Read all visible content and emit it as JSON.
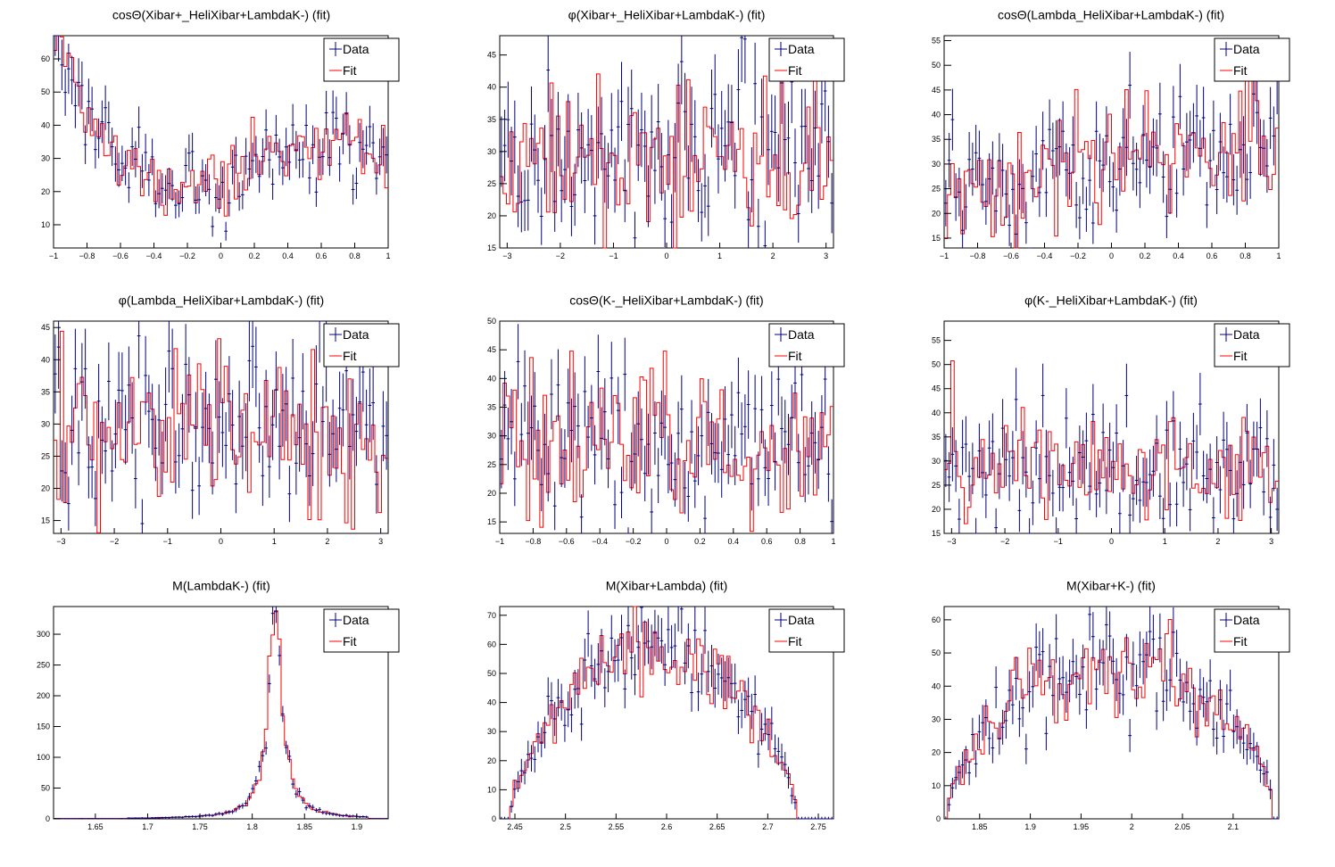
{
  "legend": {
    "data_label": "Data",
    "fit_label": "Fit"
  },
  "colors": {
    "data": "#000080",
    "fit": "#ff0000",
    "axis": "#000000",
    "frame_bg": "#ffffff"
  },
  "chart_data": [
    {
      "type": "histogram",
      "title": "cosΘ(Xibar+_HeliXibar+LambdaK-) (fit)",
      "xlim": [
        -1,
        1
      ],
      "ylim": [
        3,
        67
      ],
      "xticks": [
        -1,
        -0.8,
        -0.6,
        -0.4,
        -0.2,
        0,
        0.2,
        0.4,
        0.6,
        0.8,
        1
      ],
      "yticks": [
        10,
        20,
        30,
        40,
        50,
        60
      ],
      "legend_position": "top-right",
      "shape": {
        "kind": "poly",
        "c": [
          24,
          20,
          24,
          -40
        ],
        "noise": 6
      }
    },
    {
      "type": "histogram",
      "title": "φ(Xibar+_HeliXibar+LambdaK-) (fit)",
      "xlim": [
        -3.14,
        3.14
      ],
      "ylim": [
        15,
        48
      ],
      "xticks": [
        -3,
        -2,
        -1,
        0,
        1,
        2,
        3
      ],
      "yticks": [
        15,
        20,
        25,
        30,
        35,
        40,
        45
      ],
      "legend_position": "top-right",
      "shape": {
        "kind": "flat",
        "c": [
          29
        ],
        "noise": 7
      }
    },
    {
      "type": "histogram",
      "title": "cosΘ(Lambda_HeliXibar+LambdaK-) (fit)",
      "xlim": [
        -1,
        1
      ],
      "ylim": [
        13,
        56
      ],
      "xticks": [
        -1,
        -0.8,
        -0.6,
        -0.4,
        -0.2,
        0,
        0.2,
        0.4,
        0.6,
        0.8,
        1
      ],
      "yticks": [
        15,
        20,
        25,
        30,
        35,
        40,
        45,
        50,
        55
      ],
      "legend_position": "top-right",
      "shape": {
        "kind": "poly",
        "c": [
          29,
          6,
          0,
          0
        ],
        "noise": 6
      }
    },
    {
      "type": "histogram",
      "title": "φ(Lambda_HeliXibar+LambdaK-) (fit)",
      "xlim": [
        -3.14,
        3.14
      ],
      "ylim": [
        13,
        46
      ],
      "xticks": [
        -3,
        -2,
        -1,
        0,
        1,
        2,
        3
      ],
      "yticks": [
        15,
        20,
        25,
        30,
        35,
        40,
        45
      ],
      "legend_position": "top-right",
      "shape": {
        "kind": "flat",
        "c": [
          29
        ],
        "noise": 7
      }
    },
    {
      "type": "histogram",
      "title": "cosΘ(K-_HeliXibar+LambdaK-) (fit)",
      "xlim": [
        -1,
        1
      ],
      "ylim": [
        13,
        50
      ],
      "xticks": [
        -1,
        -0.8,
        -0.6,
        -0.4,
        -0.2,
        0,
        0.2,
        0.4,
        0.6,
        0.8,
        1
      ],
      "yticks": [
        15,
        20,
        25,
        30,
        35,
        40,
        45,
        50
      ],
      "legend_position": "top-right",
      "shape": {
        "kind": "flat",
        "c": [
          29
        ],
        "noise": 7
      }
    },
    {
      "type": "histogram",
      "title": "φ(K-_HeliXibar+LambdaK-) (fit)",
      "xlim": [
        -3.14,
        3.14
      ],
      "ylim": [
        15,
        59
      ],
      "xticks": [
        -3,
        -2,
        -1,
        0,
        1,
        2,
        3
      ],
      "yticks": [
        15,
        20,
        25,
        30,
        35,
        40,
        45,
        50,
        55
      ],
      "legend_position": "top-right",
      "shape": {
        "kind": "flat",
        "c": [
          28
        ],
        "noise": 6
      }
    },
    {
      "type": "histogram",
      "title": "M(LambdaK-) (fit)",
      "xlim": [
        1.61,
        1.93
      ],
      "ylim": [
        0,
        345
      ],
      "xticks": [
        1.65,
        1.7,
        1.75,
        1.8,
        1.85,
        1.9
      ],
      "yticks": [
        0,
        50,
        100,
        150,
        200,
        250,
        300
      ],
      "legend_position": "top-right",
      "shape": {
        "kind": "peak",
        "c": [
          1.822,
          0.0085,
          320,
          1.68,
          1.91
        ],
        "noise": 0.1
      }
    },
    {
      "type": "histogram",
      "title": "M(Xibar+Lambda) (fit)",
      "xlim": [
        2.435,
        2.765
      ],
      "ylim": [
        0,
        73
      ],
      "xticks": [
        2.45,
        2.5,
        2.55,
        2.6,
        2.65,
        2.7,
        2.75
      ],
      "yticks": [
        0,
        10,
        20,
        30,
        40,
        50,
        60,
        70
      ],
      "legend_position": "top-right",
      "shape": {
        "kind": "arch",
        "c": [
          2.445,
          2.73,
          58,
          0.7
        ],
        "noise": 0.14
      }
    },
    {
      "type": "histogram",
      "title": "M(Xibar+K-) (fit)",
      "xlim": [
        1.815,
        2.145
      ],
      "ylim": [
        0,
        64
      ],
      "xticks": [
        1.85,
        1.9,
        1.95,
        2,
        2.05,
        2.1
      ],
      "yticks": [
        0,
        10,
        20,
        30,
        40,
        50,
        60
      ],
      "legend_position": "top-right",
      "shape": {
        "kind": "arch",
        "c": [
          1.818,
          2.14,
          45,
          0.55
        ],
        "noise": 0.18
      }
    }
  ]
}
